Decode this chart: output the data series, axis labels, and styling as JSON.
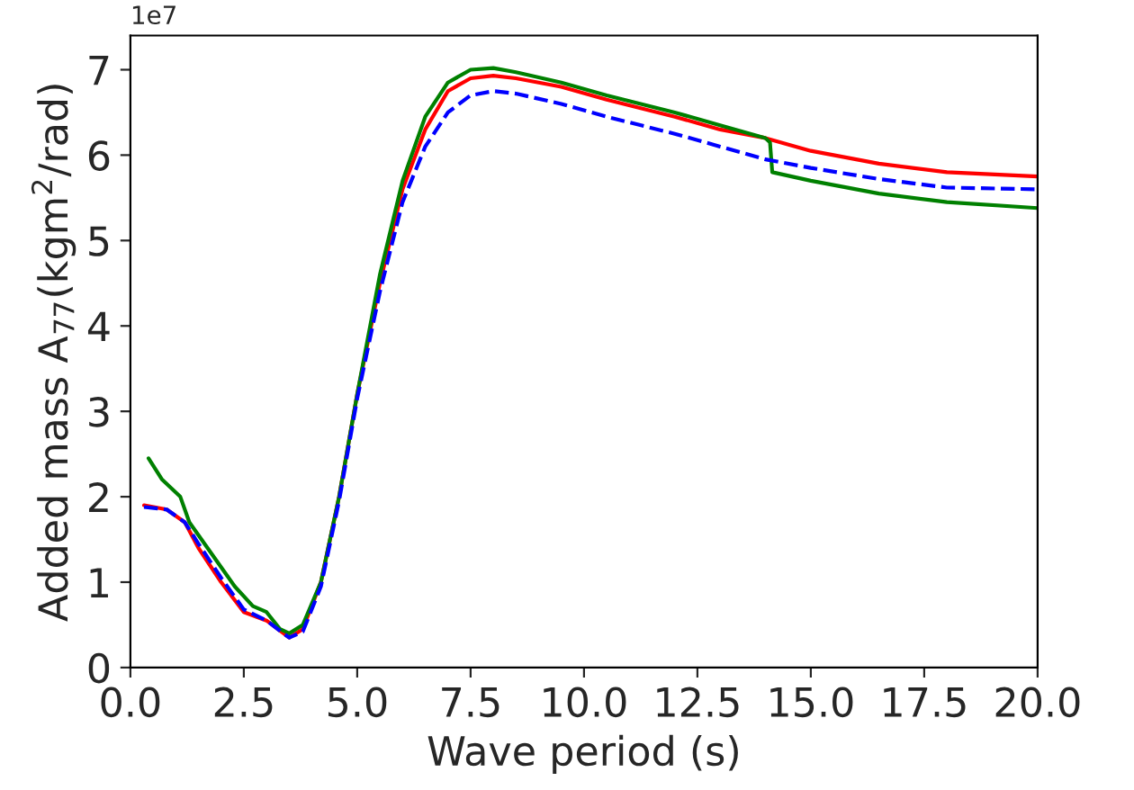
{
  "chart_data": {
    "type": "line",
    "xlabel": "Wave period (s)",
    "ylabel": "Added mass A$_{77}$(kgm$^{2}$/rad)",
    "xlim": [
      0,
      20
    ],
    "ylim": [
      0,
      7.4
    ],
    "xticks": [
      {
        "value": 0,
        "label": "0.0"
      },
      {
        "value": 2.5,
        "label": "2.5"
      },
      {
        "value": 5,
        "label": "5.0"
      },
      {
        "value": 7.5,
        "label": "7.5"
      },
      {
        "value": 10,
        "label": "10.0"
      },
      {
        "value": 12.5,
        "label": "12.5"
      },
      {
        "value": 15,
        "label": "15.0"
      },
      {
        "value": 17.5,
        "label": "17.5"
      },
      {
        "value": 20,
        "label": "20.0"
      }
    ],
    "yticks": [
      0,
      1,
      2,
      3,
      4,
      5,
      6,
      7
    ],
    "annotations": [
      "1e7"
    ],
    "grid": false,
    "marker": "none",
    "series": [
      {
        "color": "#ff0000",
        "line_style": "solid",
        "x": [
          0.3,
          0.8,
          1.2,
          1.5,
          2.0,
          2.5,
          3.0,
          3.5,
          3.8,
          4.2,
          4.6,
          5.0,
          5.5,
          6.0,
          6.5,
          7.0,
          7.5,
          8.0,
          8.5,
          9.5,
          10.5,
          12,
          13,
          14,
          15,
          16.5,
          18,
          20
        ],
        "values": [
          1.9,
          1.85,
          1.7,
          1.4,
          1.0,
          0.65,
          0.55,
          0.35,
          0.45,
          1.0,
          2.0,
          3.2,
          4.5,
          5.6,
          6.3,
          6.75,
          6.9,
          6.93,
          6.9,
          6.8,
          6.65,
          6.45,
          6.3,
          6.2,
          6.05,
          5.9,
          5.8,
          5.75
        ]
      },
      {
        "color": "#008000",
        "line_style": "solid",
        "x": [
          0.4,
          0.7,
          1.0,
          1.1,
          1.3,
          1.7,
          2.1,
          2.3,
          2.7,
          3.0,
          3.3,
          3.5,
          3.8,
          4.2,
          4.6,
          5.0,
          5.5,
          6.0,
          6.5,
          7.0,
          7.5,
          8.0,
          8.5,
          9.5,
          10.5,
          12,
          13,
          14.0,
          14.1,
          14.15,
          15,
          16.5,
          18,
          20
        ],
        "values": [
          2.45,
          2.2,
          2.05,
          2.0,
          1.7,
          1.4,
          1.1,
          0.95,
          0.72,
          0.65,
          0.45,
          0.4,
          0.5,
          1.0,
          2.0,
          3.2,
          4.6,
          5.7,
          6.45,
          6.85,
          7.0,
          7.02,
          6.97,
          6.85,
          6.7,
          6.5,
          6.35,
          6.2,
          6.15,
          5.8,
          5.7,
          5.55,
          5.45,
          5.38
        ]
      },
      {
        "color": "#0000ff",
        "line_style": "dashed",
        "x": [
          0.3,
          0.8,
          1.2,
          1.5,
          2.0,
          2.5,
          3.0,
          3.5,
          3.8,
          4.2,
          4.6,
          5.0,
          5.5,
          6.0,
          6.5,
          7.0,
          7.5,
          8.0,
          8.5,
          9.5,
          10.5,
          12,
          13,
          14,
          15,
          16.5,
          18,
          20
        ],
        "values": [
          1.88,
          1.85,
          1.7,
          1.45,
          1.05,
          0.68,
          0.55,
          0.35,
          0.42,
          0.95,
          1.95,
          3.15,
          4.4,
          5.45,
          6.1,
          6.5,
          6.7,
          6.75,
          6.72,
          6.6,
          6.45,
          6.25,
          6.1,
          5.95,
          5.85,
          5.72,
          5.62,
          5.6
        ]
      }
    ]
  }
}
